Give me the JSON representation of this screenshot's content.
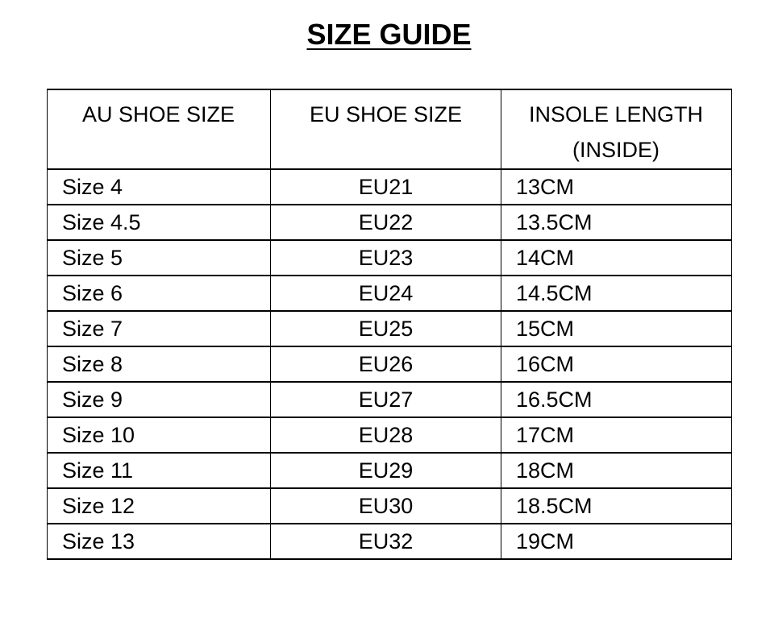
{
  "title": "SIZE GUIDE",
  "table": {
    "headers": [
      "AU SHOE SIZE",
      "EU SHOE SIZE",
      "INSOLE LENGTH (INSIDE)"
    ],
    "rows": [
      [
        "Size 4",
        "EU21",
        "13CM"
      ],
      [
        "Size 4.5",
        "EU22",
        "13.5CM"
      ],
      [
        "Size 5",
        "EU23",
        "14CM"
      ],
      [
        "Size 6",
        "EU24",
        "14.5CM"
      ],
      [
        "Size 7",
        "EU25",
        "15CM"
      ],
      [
        "Size 8",
        "EU26",
        "16CM"
      ],
      [
        "Size 9",
        "EU27",
        "16.5CM"
      ],
      [
        "Size 10",
        "EU28",
        "17CM"
      ],
      [
        "Size 11",
        "EU29",
        "18CM"
      ],
      [
        "Size 12",
        "EU30",
        "18.5CM"
      ],
      [
        "Size 13",
        "EU32",
        "19CM"
      ]
    ]
  }
}
